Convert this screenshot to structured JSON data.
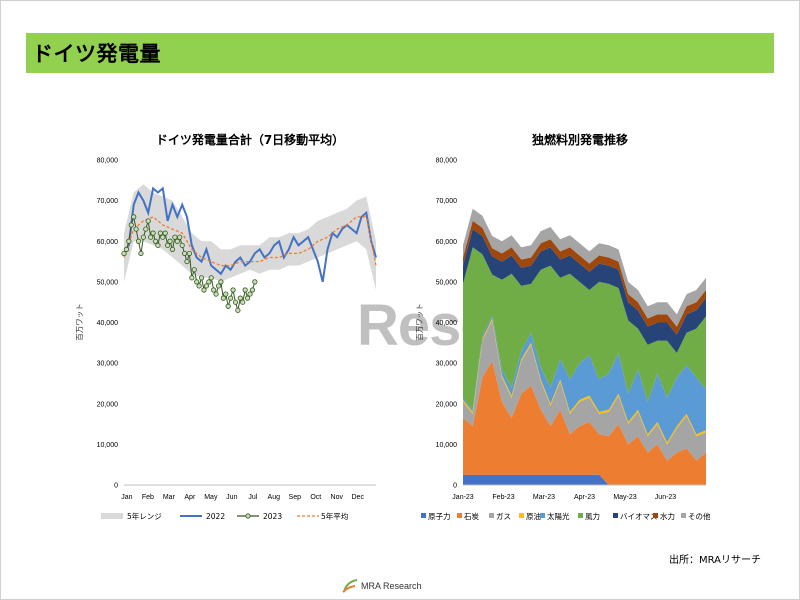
{
  "header": {
    "title": "ドイツ発電量"
  },
  "watermark": "Rese",
  "source": "出所：MRAリサーチ",
  "logo": {
    "text": "MRA Research"
  },
  "colors": {
    "accent_bar": "#92d050",
    "range": "#d9d9d9",
    "y2022": "#4472c4",
    "y2023_line": "#375623",
    "y2023_marker": "#c5e0b4",
    "avg5": "#ed7d31",
    "nuclear": "#4472c4",
    "coal": "#ed7d31",
    "gas": "#a5a5a5",
    "oil": "#ffc000",
    "solar": "#5b9bd5",
    "wind": "#70ad47",
    "biomass": "#264478",
    "hydro": "#9e480e",
    "other": "#a5a5a5"
  },
  "chart_data": [
    {
      "type": "line",
      "title": "ドイツ発電量合計（7日移動平均）",
      "ylabel": "百万ワット",
      "ylim": [
        0,
        80000
      ],
      "yticks": [
        "0",
        "10,000",
        "20,000",
        "30,000",
        "40,000",
        "50,000",
        "60,000",
        "70,000",
        "80,000"
      ],
      "xticks": [
        "Jan",
        "Feb",
        "Mar",
        "Apr",
        "May",
        "Jun",
        "Jul",
        "Aug",
        "Sep",
        "Oct",
        "Nov",
        "Dec"
      ],
      "x_unit": "week_of_year",
      "legend": [
        "5年レンジ",
        "2022",
        "2023",
        "5年平均"
      ],
      "series": [
        {
          "name": "5年レンジ",
          "x": [
            0,
            2,
            4,
            6,
            8,
            10,
            12,
            14,
            16,
            18,
            20,
            22,
            24,
            26,
            28,
            30,
            32,
            34,
            36,
            38,
            40,
            42,
            44,
            46,
            48,
            50,
            52
          ],
          "low": [
            50000,
            60000,
            60000,
            59000,
            58000,
            56000,
            54000,
            52000,
            51000,
            51000,
            50000,
            51000,
            52000,
            53000,
            52000,
            53000,
            53000,
            54000,
            54000,
            55000,
            56000,
            57000,
            58000,
            59000,
            60000,
            58000,
            48000
          ],
          "high": [
            62000,
            72000,
            74000,
            72000,
            71000,
            70000,
            66000,
            62000,
            60000,
            60000,
            58000,
            58000,
            59000,
            59000,
            59000,
            61000,
            61000,
            62000,
            62000,
            63000,
            65000,
            66000,
            67000,
            68000,
            70000,
            71000,
            60000
          ]
        },
        {
          "name": "2022",
          "x": [
            0,
            1,
            2,
            3,
            4,
            5,
            6,
            7,
            8,
            9,
            10,
            11,
            12,
            13,
            14,
            15,
            16,
            17,
            18,
            19,
            20,
            21,
            22,
            23,
            24,
            25,
            26,
            27,
            28,
            29,
            30,
            31,
            32,
            33,
            34,
            35,
            36,
            37,
            38,
            39,
            40,
            41,
            42,
            43,
            44,
            45,
            46,
            47,
            48,
            49,
            50,
            51,
            52
          ],
          "values": [
            57000,
            59000,
            69000,
            72000,
            70000,
            67000,
            73000,
            72000,
            73000,
            65000,
            69000,
            66000,
            69000,
            66000,
            59000,
            56000,
            55000,
            58000,
            54000,
            53000,
            52000,
            54000,
            53000,
            55000,
            56000,
            54000,
            55000,
            57000,
            58000,
            56000,
            57000,
            59000,
            60000,
            56000,
            58000,
            61000,
            59000,
            60000,
            61000,
            58000,
            55000,
            50000,
            58000,
            62000,
            61000,
            63000,
            64000,
            63000,
            62000,
            66000,
            67000,
            60000,
            56000
          ]
        },
        {
          "name": "2023",
          "x": [
            0,
            0.5,
            1,
            1.5,
            2,
            2.5,
            3,
            3.5,
            4,
            4.5,
            5,
            5.5,
            6,
            6.5,
            7,
            7.5,
            8,
            8.5,
            9,
            9.5,
            10,
            10.5,
            11,
            11.5,
            12,
            12.5,
            13,
            13.5,
            14,
            14.5,
            15,
            15.5,
            16,
            16.5,
            17,
            17.5,
            18,
            18.5,
            19,
            19.5,
            20,
            20.5,
            21,
            21.5,
            22,
            22.5,
            23,
            23.5,
            24,
            24.5,
            25,
            25.5,
            26,
            26.5,
            27
          ],
          "values": [
            57000,
            58000,
            60000,
            64000,
            66000,
            63000,
            60000,
            57000,
            61000,
            63000,
            65000,
            61000,
            62000,
            60000,
            59000,
            62000,
            61000,
            62000,
            59000,
            60000,
            58000,
            61000,
            60000,
            61000,
            59000,
            57000,
            55000,
            57000,
            51000,
            53000,
            50000,
            49000,
            51000,
            48000,
            49000,
            50000,
            51000,
            48000,
            47000,
            49000,
            50000,
            46000,
            47000,
            44000,
            46000,
            48000,
            45000,
            43000,
            46000,
            45000,
            48000,
            46000,
            47000,
            48000,
            50000
          ]
        },
        {
          "name": "5年平均",
          "x": [
            0,
            2,
            4,
            6,
            8,
            10,
            12,
            14,
            16,
            18,
            20,
            22,
            24,
            26,
            28,
            30,
            32,
            34,
            36,
            38,
            40,
            42,
            44,
            46,
            48,
            50,
            52
          ],
          "values": [
            56000,
            63000,
            65000,
            66000,
            64000,
            63000,
            62000,
            58000,
            56000,
            55000,
            54000,
            54000,
            55000,
            55000,
            55000,
            56000,
            56000,
            57000,
            57000,
            58000,
            60000,
            61000,
            63000,
            64000,
            66000,
            66000,
            54000
          ]
        }
      ]
    },
    {
      "type": "area",
      "title": "独燃料別発電推移",
      "ylabel": "百万ワット",
      "ylim": [
        0,
        80000
      ],
      "yticks": [
        "0",
        "10,000",
        "20,000",
        "30,000",
        "40,000",
        "50,000",
        "60,000",
        "70,000",
        "80,000"
      ],
      "xticks": [
        "Jan-23",
        "Feb-23",
        "Mar-23",
        "Apr-23",
        "May-23",
        "Jun-23"
      ],
      "x_unit": "week_of_2023",
      "stacked": true,
      "x": [
        0,
        1,
        2,
        3,
        4,
        5,
        6,
        7,
        8,
        9,
        10,
        11,
        12,
        13,
        14,
        15,
        16,
        17,
        18,
        19,
        20,
        21,
        22,
        23,
        24,
        25
      ],
      "series": [
        {
          "name": "原子力",
          "values": [
            2500,
            2500,
            2500,
            2500,
            2500,
            2500,
            2500,
            2500,
            2500,
            2500,
            2500,
            2500,
            2500,
            2500,
            2500,
            0,
            0,
            0,
            0,
            0,
            0,
            0,
            0,
            0,
            0,
            0
          ]
        },
        {
          "name": "石炭",
          "values": [
            14000,
            12000,
            24000,
            28000,
            18000,
            14000,
            20000,
            22000,
            16000,
            12000,
            16000,
            10000,
            12000,
            13000,
            10000,
            12000,
            15000,
            10000,
            12000,
            8000,
            10000,
            6000,
            8000,
            9000,
            6000,
            8000
          ]
        },
        {
          "name": "ガス",
          "values": [
            4000,
            3000,
            9000,
            10000,
            6000,
            5000,
            8000,
            10000,
            7000,
            5000,
            7000,
            5000,
            6000,
            6000,
            5000,
            6000,
            7000,
            5000,
            6000,
            4000,
            5000,
            4000,
            6000,
            8000,
            6000,
            5000
          ]
        },
        {
          "name": "原油",
          "values": [
            500,
            500,
            500,
            500,
            500,
            500,
            500,
            500,
            500,
            500,
            500,
            500,
            500,
            500,
            500,
            500,
            500,
            500,
            500,
            500,
            500,
            500,
            500,
            500,
            500,
            500
          ]
        },
        {
          "name": "太陽光",
          "values": [
            500,
            500,
            800,
            800,
            1500,
            2000,
            2000,
            2500,
            3000,
            4000,
            5000,
            8000,
            9000,
            10000,
            8000,
            9000,
            10000,
            7000,
            10000,
            8000,
            12000,
            11000,
            12000,
            12000,
            14000,
            10000
          ]
        },
        {
          "name": "風力",
          "values": [
            28000,
            40000,
            20000,
            10000,
            22000,
            28000,
            16000,
            12000,
            24000,
            30000,
            20000,
            26000,
            20000,
            16000,
            24000,
            22000,
            16000,
            18000,
            10000,
            14000,
            8000,
            14000,
            6000,
            8000,
            12000,
            18000
          ]
        },
        {
          "name": "バイオマス",
          "values": [
            4500,
            4500,
            4500,
            4500,
            4500,
            4500,
            4500,
            4500,
            4500,
            4500,
            4500,
            4500,
            4500,
            4500,
            4500,
            4500,
            4500,
            4500,
            4500,
            4500,
            4500,
            4500,
            4500,
            4500,
            4500,
            4500
          ]
        },
        {
          "name": "水力",
          "values": [
            2000,
            2000,
            2000,
            2000,
            2000,
            2000,
            2000,
            2000,
            2000,
            2000,
            2000,
            2000,
            2000,
            2000,
            2000,
            2000,
            2000,
            2000,
            2000,
            2000,
            2000,
            2000,
            2000,
            2000,
            2000,
            2000
          ]
        },
        {
          "name": "その他",
          "values": [
            3000,
            3000,
            3000,
            3000,
            3000,
            3000,
            3000,
            3000,
            3000,
            3000,
            3000,
            3000,
            3000,
            3000,
            3000,
            3000,
            3000,
            3000,
            3000,
            3000,
            3000,
            3000,
            3000,
            3000,
            3000,
            3000
          ]
        }
      ]
    }
  ]
}
